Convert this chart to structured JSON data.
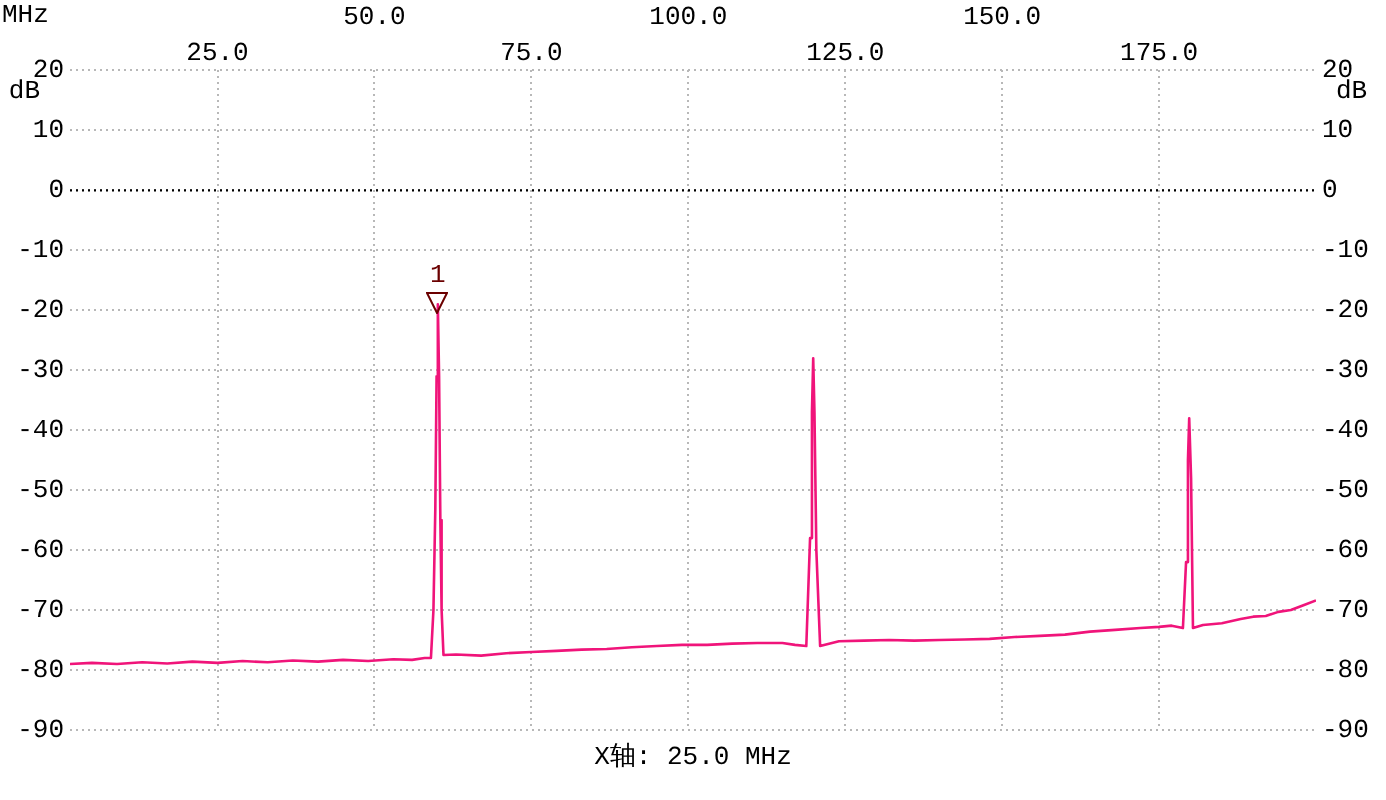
{
  "chart_data": {
    "type": "line",
    "xlabel": "MHz",
    "ylabel": "dB",
    "y2label": "dB",
    "x": [
      1.5,
      5,
      9,
      13,
      17,
      21,
      25,
      29,
      33,
      37,
      41,
      45,
      49,
      53,
      56,
      58,
      59,
      59.4,
      59.7,
      59.9,
      60.1,
      60.3,
      60.5,
      60.7,
      61,
      63,
      67,
      71,
      75,
      79,
      83,
      87,
      91,
      95,
      99,
      103,
      107,
      111,
      115,
      117,
      118.8,
      119.4,
      119.7,
      119.9,
      120.1,
      120.4,
      121,
      124,
      128,
      132,
      136,
      140,
      144,
      148,
      152,
      156,
      160,
      164,
      168,
      172,
      175,
      177,
      178.8,
      179.3,
      179.6,
      179.8,
      180.1,
      180.4,
      182,
      185,
      188,
      190,
      192,
      194,
      196,
      198,
      200
    ],
    "series": [
      {
        "color": "#f0147a",
        "values": [
          -79,
          -78.8,
          -79,
          -78.7,
          -78.9,
          -78.6,
          -78.8,
          -78.5,
          -78.7,
          -78.4,
          -78.6,
          -78.3,
          -78.5,
          -78.2,
          -78.3,
          -78,
          -78,
          -70,
          -53,
          -31,
          -19,
          -31,
          -55,
          -70,
          -77.5,
          -77.4,
          -77.6,
          -77.2,
          -77,
          -76.8,
          -76.6,
          -76.5,
          -76.2,
          -76,
          -75.8,
          -75.8,
          -75.6,
          -75.5,
          -75.5,
          -75.8,
          -76,
          -58,
          -37,
          -28,
          -37,
          -60,
          -76,
          -75.2,
          -75.1,
          -75,
          -75.1,
          -75,
          -74.9,
          -74.8,
          -74.5,
          -74.3,
          -74.1,
          -73.6,
          -73.3,
          -73,
          -72.8,
          -72.6,
          -73,
          -62,
          -45,
          -38,
          -48,
          -73,
          -72.5,
          -72.2,
          -71.5,
          -71.1,
          -71,
          -70.3,
          -70,
          -69.2,
          -68.4
        ]
      }
    ],
    "xlim": [
      1.5,
      200
    ],
    "xticks": [
      {
        "value": 25,
        "label": "25.0"
      },
      {
        "value": 75,
        "label": "75.0"
      },
      {
        "value": 125,
        "label": "125.0"
      },
      {
        "value": 175,
        "label": "175.0"
      }
    ],
    "x2lim": [
      1.5,
      200
    ],
    "x2ticks": [
      {
        "value": 50,
        "label": "50.0"
      },
      {
        "value": 100,
        "label": "100.0"
      },
      {
        "value": 150,
        "label": "150.0"
      }
    ],
    "ylim": [
      -90,
      20
    ],
    "yticks": [
      -90,
      -80,
      -70,
      -60,
      -50,
      -40,
      -30,
      -20,
      -10,
      0,
      10,
      20
    ],
    "y2lim": [
      -90,
      20
    ],
    "y2ticks": [
      -90,
      -80,
      -70,
      -60,
      -50,
      -40,
      -30,
      -20,
      -10,
      0,
      10,
      20
    ],
    "ref_lines": [
      {
        "axis": "y",
        "value": 0,
        "color": "#000000",
        "line_style": "dotted"
      }
    ],
    "annotations": [
      {
        "text": "1",
        "x": 60.1,
        "y": -20
      },
      "X轴: 25.0 MHz"
    ],
    "grid": true,
    "legend": false,
    "marker": "none",
    "line_style": "solid"
  }
}
